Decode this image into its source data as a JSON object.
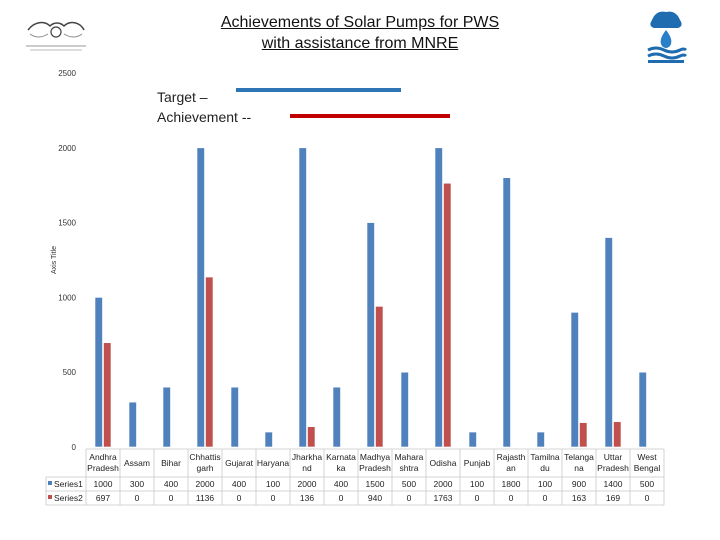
{
  "slide": {
    "title_line1": "Achievements of Solar Pumps for PWS",
    "title_line2": "with assistance from MNRE",
    "legend_target": "Target –",
    "legend_achievement": "Achievement --",
    "logo_left_icon": "government-emblem-logo",
    "logo_right_icon": "jal-shakti-logo"
  },
  "chart_data": {
    "type": "bar",
    "ylabel": "Axis Title",
    "ylim": [
      0,
      2500
    ],
    "yticks": [
      "0",
      "500",
      "1000",
      "1500",
      "2000",
      "2500"
    ],
    "grid": false,
    "categories": [
      [
        "Andhra",
        "Pradesh"
      ],
      [
        "Assam"
      ],
      [
        "Bihar"
      ],
      [
        "Chhattis",
        "garh"
      ],
      [
        "Gujarat"
      ],
      [
        "Haryana"
      ],
      [
        "Jharkha",
        "nd"
      ],
      [
        "Karnata",
        "ka"
      ],
      [
        "Madhya",
        "Pradesh"
      ],
      [
        "Mahara",
        "shtra"
      ],
      [
        "Odisha"
      ],
      [
        "Punjab"
      ],
      [
        "Rajasth",
        "an"
      ],
      [
        "Tamilna",
        "du"
      ],
      [
        "Telanga",
        "na"
      ],
      [
        "Uttar",
        "Pradesh"
      ],
      [
        "West",
        "Bengal"
      ]
    ],
    "series": [
      {
        "name": "Series1",
        "color": "#4f81bd",
        "values": [
          1000,
          300,
          400,
          2000,
          400,
          100,
          2000,
          400,
          1500,
          500,
          2000,
          100,
          1800,
          100,
          900,
          1400,
          500
        ]
      },
      {
        "name": "Series2",
        "color": "#c0504d",
        "values": [
          697,
          0,
          0,
          1136,
          0,
          0,
          136,
          0,
          940,
          0,
          1763,
          0,
          0,
          0,
          163,
          169,
          0
        ]
      }
    ],
    "legend_colors": {
      "target": "#2e75b6",
      "achievement": "#c00000"
    }
  }
}
